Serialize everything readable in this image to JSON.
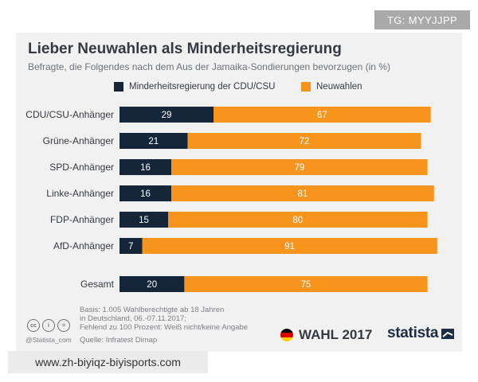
{
  "tag_label": "TG: MYYJJPP",
  "watermark_url": "www.zh-biyiqz-biyisports.com",
  "colors": {
    "minority": "#15263b",
    "new_elections": "#f7941d",
    "background": "#f1f1f1"
  },
  "chart_data": {
    "type": "bar",
    "orientation": "horizontal",
    "stacked": true,
    "title": "Lieber Neuwahlen als Minderheitsregierung",
    "subtitle": "Befragte, die Folgendes nach dem Aus der Jamaika-Sondierungen bevorzugen (in %)",
    "categories": [
      "CDU/CSU-Anhänger",
      "Grüne-Anhänger",
      "SPD-Anhänger",
      "Linke-Anhänger",
      "FDP-Anhänger",
      "AfD-Anhänger",
      "Gesamt"
    ],
    "series": [
      {
        "name": "Minderheitsregierung der CDU/CSU",
        "values": [
          29,
          21,
          16,
          16,
          15,
          7,
          20
        ]
      },
      {
        "name": "Neuwahlen",
        "values": [
          67,
          72,
          79,
          81,
          80,
          91,
          75
        ]
      }
    ],
    "xlim": [
      0,
      100
    ],
    "legend_position": "top",
    "grid": false
  },
  "footer": {
    "basis_lines": [
      "Basis: 1.005 Wahlberechtigte ab 18 Jahren",
      "in Deutschland, 06.-07.11.2017;",
      "Fehlend zu 100 Prozent: Weiß nicht/keine Angabe"
    ],
    "source": "Quelle: Infratest Dimap",
    "cc_handle": "@Statista_com",
    "cc_icons": [
      "cc",
      "i",
      "="
    ],
    "wahl_label": "WAHL 2017",
    "brand": "statista"
  }
}
